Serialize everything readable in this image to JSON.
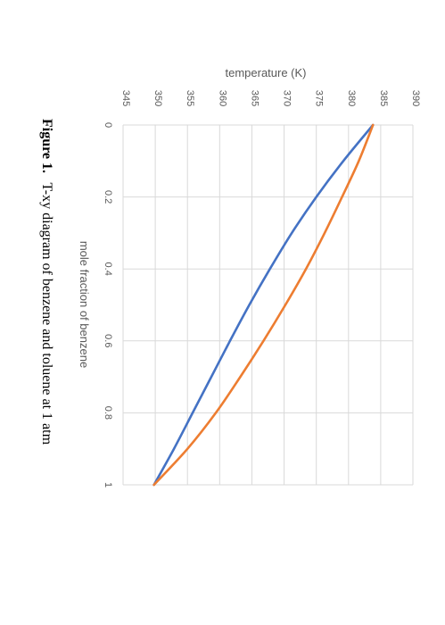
{
  "chart_data": {
    "type": "line",
    "orientation": "rotated-90-clockwise",
    "xlabel": "mole fraction of benzene",
    "ylabel": "temperature (K)",
    "xlim": [
      0,
      1
    ],
    "ylim": [
      345,
      390
    ],
    "x_ticks": [
      "0",
      "0.2",
      "0.4",
      "0.6",
      "0.8",
      "1"
    ],
    "y_ticks": [
      "345",
      "350",
      "355",
      "360",
      "365",
      "370",
      "375",
      "380",
      "385",
      "390"
    ],
    "grid": true,
    "legend": "none",
    "series": [
      {
        "color": "#4472c4",
        "x": [
          0,
          0.1,
          0.2,
          0.3,
          0.4,
          0.5,
          0.6,
          0.7,
          0.8,
          0.9,
          1.0
        ],
        "y": [
          383.8,
          379.2,
          375.0,
          371.2,
          367.8,
          364.6,
          361.6,
          358.7,
          355.8,
          352.9,
          349.8
        ]
      },
      {
        "color": "#ed7d31",
        "x": [
          0,
          0.1,
          0.2,
          0.3,
          0.4,
          0.5,
          0.6,
          0.7,
          0.8,
          0.9,
          1.0
        ],
        "y": [
          383.8,
          381.6,
          379.0,
          376.3,
          373.4,
          370.2,
          366.8,
          363.2,
          359.4,
          355.0,
          349.8
        ]
      }
    ]
  },
  "caption": {
    "label": "Figure 1.",
    "text": "T-xy diagram of benzene and toluene at 1 atm"
  }
}
